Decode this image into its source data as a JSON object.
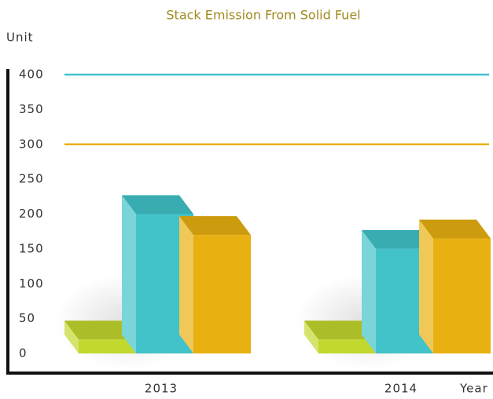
{
  "chart_data": {
    "type": "bar3d",
    "title": "Stack Emission From Solid Fuel",
    "y_label": "Unit",
    "x_label": "Year",
    "categories": [
      "2013",
      "2014"
    ],
    "series": [
      {
        "color": "#c2d82e",
        "values": [
          20,
          20
        ]
      },
      {
        "color": "#41c3c9",
        "values": [
          200,
          150
        ]
      },
      {
        "color": "#e8b010",
        "values": [
          170,
          165
        ]
      }
    ],
    "reference_lines": [
      {
        "value": 400,
        "color": "#41c3c9"
      },
      {
        "value": 300,
        "color": "#e8b010"
      }
    ],
    "ylim": [
      0,
      400
    ],
    "yticks": [
      0,
      50,
      100,
      150,
      200,
      250,
      300,
      350,
      400
    ],
    "grid": false
  }
}
